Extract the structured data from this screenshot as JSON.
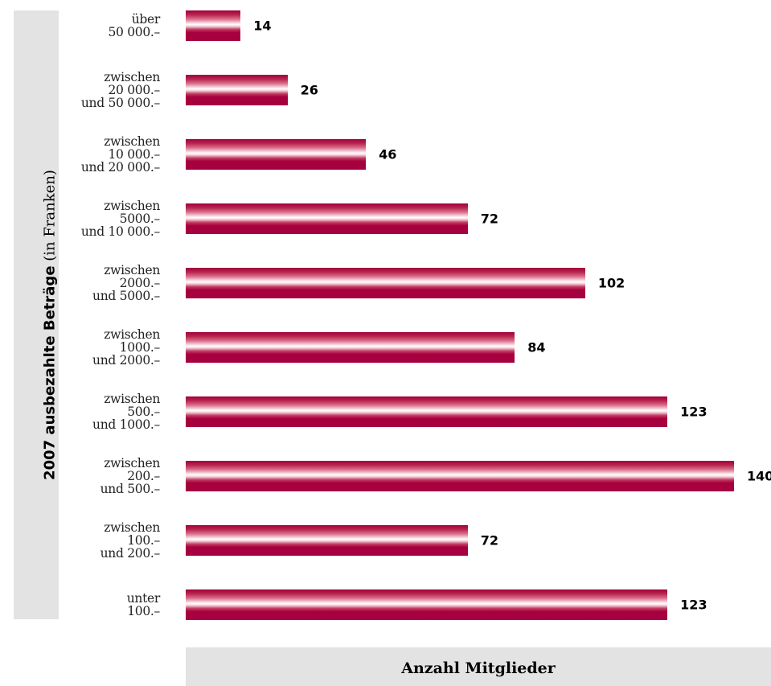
{
  "chart_data": {
    "type": "bar",
    "orientation": "horizontal",
    "ylabel_bold": "2007 ausbezahlte Beträge",
    "ylabel_light": " (in Franken)",
    "xlabel": "Anzahl Mitglieder",
    "xlim": [
      0,
      140
    ],
    "bar_color": "#a8003f",
    "categories": [
      {
        "lines": [
          "über",
          "50 000.–"
        ]
      },
      {
        "lines": [
          "zwischen",
          "20 000.–",
          "und 50 000.–"
        ]
      },
      {
        "lines": [
          "zwischen",
          "10 000.–",
          "und 20 000.–"
        ]
      },
      {
        "lines": [
          "zwischen",
          "5000.–",
          "und 10 000.–"
        ]
      },
      {
        "lines": [
          "zwischen",
          "2000.–",
          "und 5000.–"
        ]
      },
      {
        "lines": [
          "zwischen",
          "1000.–",
          "und 2000.–"
        ]
      },
      {
        "lines": [
          "zwischen",
          "500.–",
          "und 1000.–"
        ]
      },
      {
        "lines": [
          "zwischen",
          "200.–",
          "und 500.–"
        ]
      },
      {
        "lines": [
          "zwischen",
          "100.–",
          "und 200.–"
        ]
      },
      {
        "lines": [
          "unter",
          "100.–"
        ]
      }
    ],
    "values": [
      14,
      26,
      46,
      72,
      102,
      84,
      123,
      140,
      72,
      123
    ]
  }
}
